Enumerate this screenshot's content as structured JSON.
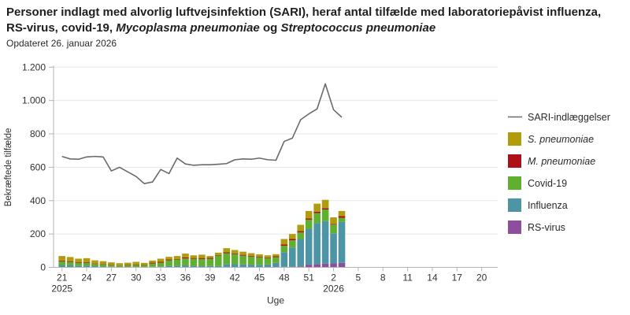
{
  "header": {
    "title_segments": [
      {
        "text": "Personer indlagt med alvorlig luftvejsinfektion (SARI), heraf antal tilfælde med laboratoriepåvist influenza, RS-virus, covid-19, ",
        "italic": false
      },
      {
        "text": "Mycoplasma pneumoniae",
        "italic": true
      },
      {
        "text": " og ",
        "italic": false
      },
      {
        "text": "Streptococcus pneumoniae",
        "italic": true
      }
    ],
    "subtitle": "Opdateret 26. januar 2026"
  },
  "chart_data": {
    "type": "line+stacked-bar",
    "xlabel": "Uge",
    "ylabel": "Bekræftede tilfælde",
    "ylim": [
      0,
      1200
    ],
    "yticks": [
      0,
      200,
      400,
      600,
      800,
      1000,
      1200
    ],
    "ytick_labels": [
      "0",
      "200",
      "400",
      "600",
      "800",
      "1.000",
      "1.200"
    ],
    "x_axis_weeks_start": 21,
    "x_axis_week_count": 52,
    "xtick_labels": [
      "21",
      "24",
      "27",
      "30",
      "33",
      "36",
      "39",
      "42",
      "45",
      "48",
      "51",
      "2",
      "5",
      "8",
      "11",
      "14",
      "17",
      "20"
    ],
    "xtick_week_offsets": [
      0,
      3,
      6,
      9,
      12,
      15,
      18,
      21,
      24,
      27,
      30,
      33,
      36,
      39,
      42,
      45,
      48,
      51
    ],
    "year_labels": [
      {
        "label": "2025",
        "week_offset": 0
      },
      {
        "label": "2026",
        "week_offset": 33
      }
    ],
    "bar_weeks": [
      "21",
      "22",
      "23",
      "24",
      "25",
      "26",
      "27",
      "28",
      "29",
      "30",
      "31",
      "32",
      "33",
      "34",
      "35",
      "36",
      "37",
      "38",
      "39",
      "40",
      "41",
      "42",
      "43",
      "44",
      "45",
      "46",
      "47",
      "48",
      "49",
      "50",
      "51",
      "52",
      "1",
      "2",
      "3"
    ],
    "grid": true,
    "legend_position": "right",
    "line_series": {
      "name": "SARI-indlæggelser",
      "color": "#6a6a6a",
      "values": [
        665,
        650,
        648,
        662,
        665,
        662,
        578,
        600,
        572,
        545,
        502,
        512,
        587,
        562,
        655,
        620,
        612,
        615,
        615,
        618,
        622,
        645,
        650,
        648,
        655,
        645,
        642,
        755,
        775,
        885,
        920,
        950,
        1100,
        945,
        900
      ]
    },
    "bar_series": [
      {
        "name": "RS-virus",
        "color": "#8f4e9d",
        "values": [
          0,
          0,
          0,
          0,
          0,
          0,
          0,
          0,
          0,
          0,
          0,
          0,
          0,
          0,
          0,
          0,
          0,
          0,
          0,
          0,
          0,
          0,
          0,
          0,
          0,
          2,
          2,
          3,
          4,
          6,
          16,
          20,
          22,
          24,
          27
        ]
      },
      {
        "name": "Influenza",
        "color": "#4d95a5",
        "values": [
          14,
          12,
          10,
          11,
          7,
          5,
          3,
          2,
          2,
          2,
          2,
          3,
          6,
          9,
          9,
          12,
          9,
          9,
          8,
          8,
          20,
          21,
          18,
          16,
          15,
          16,
          25,
          88,
          115,
          164,
          215,
          245,
          255,
          180,
          245
        ]
      },
      {
        "name": "Covid-19",
        "color": "#5fb02e",
        "values": [
          22,
          20,
          16,
          16,
          13,
          12,
          10,
          9,
          10,
          12,
          10,
          20,
          22,
          33,
          38,
          41,
          43,
          41,
          43,
          63,
          65,
          58,
          52,
          48,
          44,
          38,
          34,
          38,
          43,
          39,
          55,
          60,
          70,
          52,
          25
        ]
      },
      {
        "name": "M. pneumoniae",
        "color": "#ad1117",
        "values": [
          5,
          5,
          4,
          5,
          3,
          3,
          3,
          2,
          3,
          3,
          2,
          5,
          5,
          5,
          3,
          6,
          4,
          6,
          6,
          3,
          6,
          5,
          5,
          4,
          4,
          4,
          5,
          8,
          8,
          8,
          8,
          9,
          8,
          4,
          11
        ]
      },
      {
        "name": "S. pneumoniae",
        "color": "#b09c0c",
        "values": [
          27,
          25,
          22,
          23,
          19,
          17,
          14,
          12,
          13,
          16,
          13,
          13,
          19,
          16,
          18,
          24,
          16,
          20,
          11,
          14,
          24,
          20,
          19,
          17,
          15,
          12,
          13,
          33,
          30,
          38,
          44,
          48,
          50,
          40,
          30
        ]
      }
    ],
    "legend": [
      {
        "label": "SARI-indlæggelser",
        "type": "line",
        "color": "#6a6a6a",
        "italic": false
      },
      {
        "label": "S. pneumoniae",
        "type": "swatch",
        "color": "#b09c0c",
        "italic": true
      },
      {
        "label": "M. pneumoniae",
        "type": "swatch",
        "color": "#ad1117",
        "italic": true
      },
      {
        "label": "Covid-19",
        "type": "swatch",
        "color": "#5fb02e",
        "italic": false
      },
      {
        "label": "Influenza",
        "type": "swatch",
        "color": "#4d95a5",
        "italic": false
      },
      {
        "label": "RS-virus",
        "type": "swatch",
        "color": "#8f4e9d",
        "italic": false
      }
    ],
    "colors": {
      "grid": "#e7e7e7",
      "axis": "#b3b3b3",
      "tick_text": "#303030"
    }
  }
}
